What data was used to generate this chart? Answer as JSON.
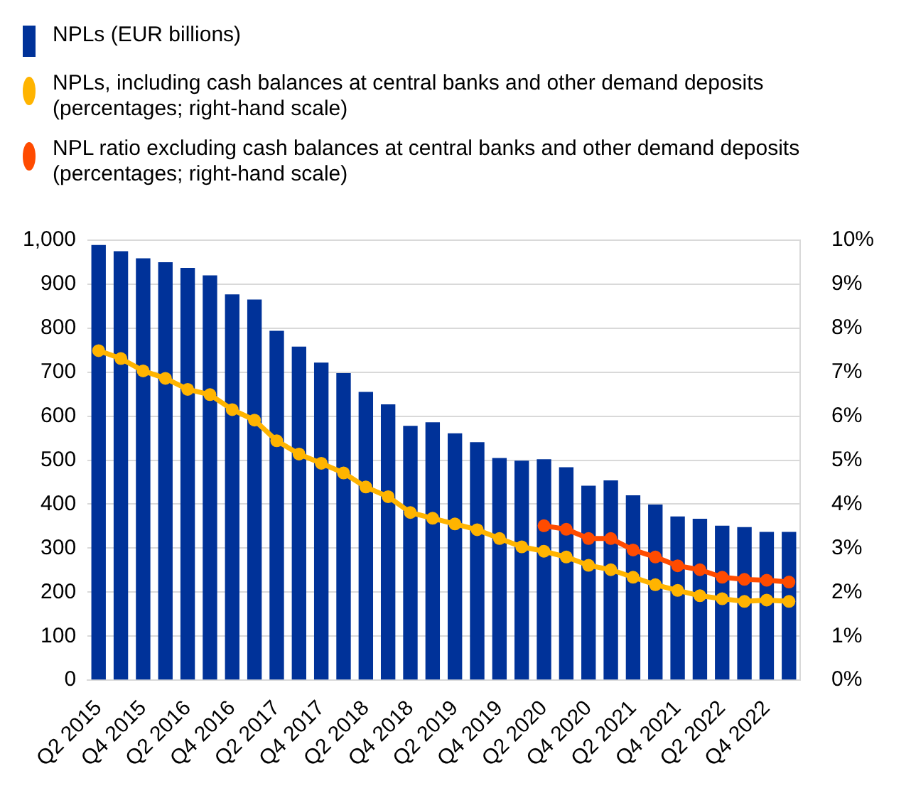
{
  "chart_data": {
    "type": "bar",
    "categories": [
      "Q2 2015",
      null,
      "Q4 2015",
      null,
      "Q2 2016",
      null,
      "Q4 2016",
      null,
      "Q2 2017",
      null,
      "Q4 2017",
      null,
      "Q2 2018",
      null,
      "Q4 2018",
      null,
      "Q2 2019",
      null,
      "Q4 2019",
      null,
      "Q2 2020",
      null,
      "Q4 2020",
      null,
      "Q2 2021",
      null,
      "Q4 2021",
      null,
      "Q2 2022",
      null,
      "Q4 2022",
      null
    ],
    "series": [
      {
        "name": "NPLs (EUR billions)",
        "color": "#003299",
        "values": [
          989,
          975,
          959,
          950,
          937,
          920,
          877,
          865,
          794,
          758,
          722,
          698,
          655,
          627,
          578,
          586,
          561,
          541,
          505,
          499,
          502,
          484,
          442,
          454,
          420,
          399,
          372,
          367,
          351,
          348,
          337,
          337
        ]
      },
      {
        "name": "NPLs, including cash balances at central banks and other demand deposits  (percentages; right-hand scale)",
        "type": "line",
        "axis": "y2",
        "color": "#ffb400",
        "values": [
          7.49,
          7.31,
          7.03,
          6.86,
          6.61,
          6.49,
          6.15,
          5.91,
          5.44,
          5.14,
          4.93,
          4.71,
          4.39,
          4.17,
          3.81,
          3.68,
          3.55,
          3.42,
          3.22,
          3.03,
          2.93,
          2.8,
          2.61,
          2.51,
          2.34,
          2.17,
          2.04,
          1.92,
          1.85,
          1.79,
          1.82,
          1.79
        ]
      },
      {
        "name": "NPL ratio excluding cash balances at central banks and other demand deposits (percentages; right-hand scale)",
        "type": "line",
        "axis": "y2",
        "color": "#ff4b00",
        "values": [
          null,
          null,
          null,
          null,
          null,
          null,
          null,
          null,
          null,
          null,
          null,
          null,
          null,
          null,
          null,
          null,
          null,
          null,
          null,
          null,
          3.51,
          3.43,
          3.22,
          3.22,
          2.96,
          2.8,
          2.6,
          2.51,
          2.34,
          2.29,
          2.27,
          2.23
        ]
      }
    ],
    "ylim": [
      0,
      1000
    ],
    "yticks": [
      0,
      100,
      200,
      300,
      400,
      500,
      600,
      700,
      800,
      900,
      {
        "value": 1000,
        "label": "1,000"
      }
    ],
    "y2lim": [
      0,
      10
    ],
    "y2ticks": [
      {
        "value": 0,
        "label": "0%"
      },
      {
        "value": 1,
        "label": "1%"
      },
      {
        "value": 2,
        "label": "2%"
      },
      {
        "value": 3,
        "label": "3%"
      },
      {
        "value": 4,
        "label": "4%"
      },
      {
        "value": 5,
        "label": "5%"
      },
      {
        "value": 6,
        "label": "6%"
      },
      {
        "value": 7,
        "label": "7%"
      },
      {
        "value": 8,
        "label": "8%"
      },
      {
        "value": 9,
        "label": "9%"
      },
      {
        "value": 10,
        "label": "10%"
      }
    ],
    "grid": "y",
    "legend": "top left",
    "marker": "circle",
    "line_style": "solid"
  }
}
